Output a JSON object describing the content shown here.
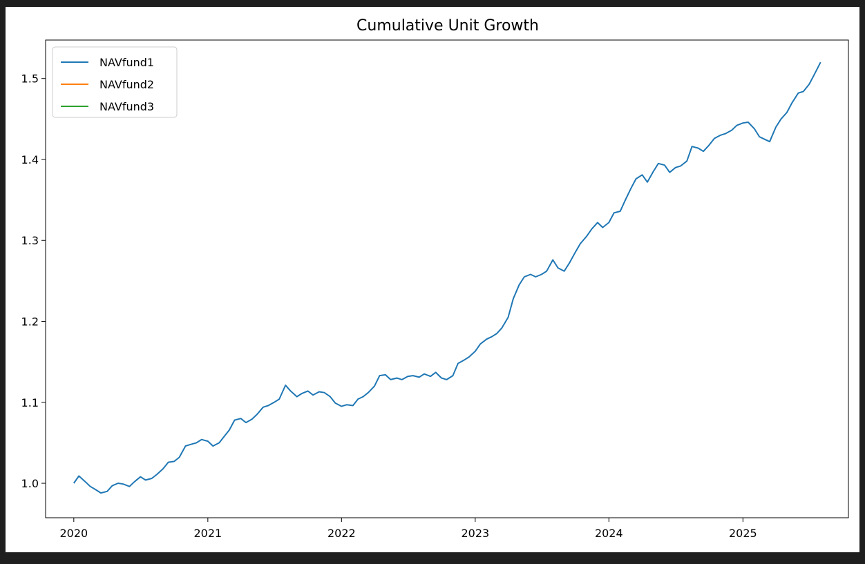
{
  "chart_data": {
    "type": "line",
    "title": "Cumulative Unit Growth",
    "xlabel": "",
    "ylabel": "",
    "xlim": [
      "2019-10-16",
      "2025-10-16"
    ],
    "ylim": [
      0.9574,
      1.5475
    ],
    "x_ticks": [
      "2020",
      "2021",
      "2022",
      "2023",
      "2024",
      "2025"
    ],
    "y_ticks": [
      "1.0",
      "1.1",
      "1.2",
      "1.3",
      "1.4",
      "1.5"
    ],
    "grid": false,
    "legend": {
      "placement": "top-left",
      "entries": [
        "NAVfund1",
        "NAVfund2",
        "NAVfund3"
      ]
    },
    "colors": {
      "NAVfund1": "#1f77b4",
      "NAVfund2": "#ff7f0e",
      "NAVfund3": "#2ca02c"
    },
    "series": [
      {
        "name": "NAVfund1",
        "x": [
          "2020-01-01",
          "2020-01-15",
          "2020-02-01",
          "2020-02-15",
          "2020-03-01",
          "2020-03-15",
          "2020-04-01",
          "2020-04-15",
          "2020-05-01",
          "2020-05-15",
          "2020-06-01",
          "2020-06-15",
          "2020-07-01",
          "2020-07-15",
          "2020-08-01",
          "2020-08-15",
          "2020-09-01",
          "2020-09-15",
          "2020-10-01",
          "2020-10-15",
          "2020-11-01",
          "2020-11-15",
          "2020-12-01",
          "2020-12-15",
          "2021-01-01",
          "2021-01-15",
          "2021-02-01",
          "2021-02-15",
          "2021-03-01",
          "2021-03-15",
          "2021-04-01",
          "2021-04-15",
          "2021-05-01",
          "2021-05-15",
          "2021-06-01",
          "2021-06-15",
          "2021-07-01",
          "2021-07-15",
          "2021-08-01",
          "2021-08-15",
          "2021-09-01",
          "2021-09-15",
          "2021-10-01",
          "2021-10-15",
          "2021-11-01",
          "2021-11-15",
          "2021-12-01",
          "2021-12-15",
          "2022-01-01",
          "2022-01-15",
          "2022-02-01",
          "2022-02-15",
          "2022-03-01",
          "2022-03-15",
          "2022-04-01",
          "2022-04-15",
          "2022-05-01",
          "2022-05-15",
          "2022-06-01",
          "2022-06-15",
          "2022-07-01",
          "2022-07-15",
          "2022-08-01",
          "2022-08-15",
          "2022-09-01",
          "2022-09-15",
          "2022-10-01",
          "2022-10-15",
          "2022-11-01",
          "2022-11-15",
          "2022-12-01",
          "2022-12-15",
          "2023-01-01",
          "2023-01-15",
          "2023-02-01",
          "2023-02-15",
          "2023-03-01",
          "2023-03-15",
          "2023-04-01",
          "2023-04-15",
          "2023-05-01",
          "2023-05-15",
          "2023-06-01",
          "2023-06-15",
          "2023-07-01",
          "2023-07-15",
          "2023-08-01",
          "2023-08-15",
          "2023-09-01",
          "2023-09-15",
          "2023-10-01",
          "2023-10-15",
          "2023-11-01",
          "2023-11-15",
          "2023-12-01",
          "2023-12-15",
          "2024-01-01",
          "2024-01-15",
          "2024-02-01",
          "2024-02-15",
          "2024-03-01",
          "2024-03-15",
          "2024-04-01",
          "2024-04-15",
          "2024-05-01",
          "2024-05-15",
          "2024-06-01",
          "2024-06-15",
          "2024-07-01",
          "2024-07-15",
          "2024-08-01",
          "2024-08-15",
          "2024-09-01",
          "2024-09-15",
          "2024-10-01",
          "2024-10-15",
          "2024-11-01",
          "2024-11-15",
          "2024-12-01",
          "2024-12-15",
          "2025-01-01",
          "2025-01-15",
          "2025-02-01",
          "2025-02-15",
          "2025-03-01",
          "2025-03-15",
          "2025-04-01",
          "2025-04-15",
          "2025-05-01",
          "2025-05-15",
          "2025-06-01",
          "2025-06-15",
          "2025-07-01",
          "2025-07-15",
          "2025-08-01"
        ],
        "values": [
          1.0,
          1.009,
          1.002,
          0.996,
          0.992,
          0.988,
          0.99,
          0.997,
          1.0,
          0.999,
          0.996,
          1.002,
          1.008,
          1.004,
          1.006,
          1.011,
          1.018,
          1.026,
          1.027,
          1.032,
          1.046,
          1.048,
          1.05,
          1.054,
          1.052,
          1.046,
          1.05,
          1.058,
          1.066,
          1.078,
          1.08,
          1.075,
          1.079,
          1.085,
          1.094,
          1.096,
          1.1,
          1.104,
          1.121,
          1.114,
          1.107,
          1.111,
          1.114,
          1.109,
          1.113,
          1.112,
          1.107,
          1.099,
          1.095,
          1.097,
          1.096,
          1.104,
          1.107,
          1.112,
          1.12,
          1.133,
          1.134,
          1.128,
          1.13,
          1.128,
          1.132,
          1.133,
          1.131,
          1.135,
          1.132,
          1.137,
          1.13,
          1.128,
          1.133,
          1.148,
          1.152,
          1.156,
          1.163,
          1.172,
          1.178,
          1.181,
          1.185,
          1.192,
          1.205,
          1.228,
          1.245,
          1.255,
          1.258,
          1.255,
          1.258,
          1.262,
          1.276,
          1.266,
          1.262,
          1.272,
          1.285,
          1.296,
          1.305,
          1.314,
          1.322,
          1.316,
          1.322,
          1.334,
          1.336,
          1.35,
          1.364,
          1.376,
          1.381,
          1.372,
          1.385,
          1.395,
          1.393,
          1.384,
          1.39,
          1.392,
          1.398,
          1.416,
          1.414,
          1.41,
          1.418,
          1.426,
          1.43,
          1.432,
          1.436,
          1.442,
          1.445,
          1.446,
          1.438,
          1.428,
          1.425,
          1.422,
          1.44,
          1.45,
          1.458,
          1.47,
          1.482,
          1.484,
          1.493,
          1.505,
          1.52
        ]
      },
      {
        "name": "NAVfund2",
        "x": [],
        "values": []
      },
      {
        "name": "NAVfund3",
        "x": [],
        "values": []
      }
    ]
  }
}
